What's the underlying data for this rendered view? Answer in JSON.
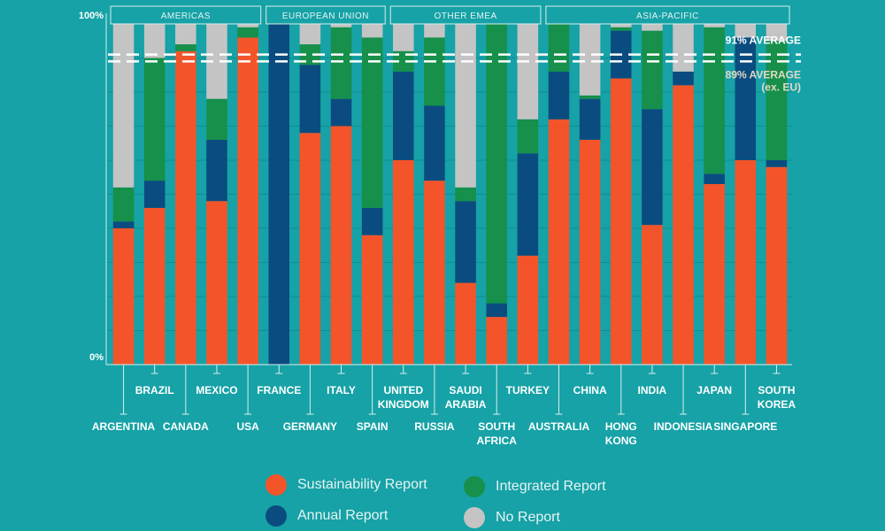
{
  "chart_data": {
    "type": "stacked-bar",
    "title": "",
    "ylabel": "",
    "ylim": [
      0,
      100
    ],
    "y_tick_labels": {
      "top": "100%",
      "bottom": "0%"
    },
    "groups": [
      {
        "label": "AMERICAS",
        "countries": [
          "ARGENTINA",
          "BRAZIL",
          "CANADA",
          "MEXICO",
          "USA"
        ]
      },
      {
        "label": "EUROPEAN UNION",
        "countries": [
          "FRANCE",
          "GERMANY",
          "ITALY",
          "SPAIN"
        ]
      },
      {
        "label": "OTHER EMEA",
        "countries": [
          "UNITED KINGDOM",
          "RUSSIA",
          "SAUDI ARABIA",
          "SOUTH AFRICA",
          "TURKEY"
        ]
      },
      {
        "label": "ASIA-PACIFIC",
        "countries": [
          "AUSTRALIA",
          "CHINA",
          "HONG KONG",
          "INDIA",
          "INDONESIA",
          "JAPAN",
          "SINGAPORE",
          "SOUTH KOREA"
        ]
      }
    ],
    "categories": [
      "ARGENTINA",
      "BRAZIL",
      "CANADA",
      "MEXICO",
      "USA",
      "FRANCE",
      "GERMANY",
      "ITALY",
      "SPAIN",
      "UNITED KINGDOM",
      "RUSSIA",
      "SAUDI ARABIA",
      "SOUTH AFRICA",
      "TURKEY",
      "AUSTRALIA",
      "CHINA",
      "HONG KONG",
      "INDIA",
      "INDONESIA",
      "JAPAN",
      "SINGAPORE",
      "SOUTH KOREA"
    ],
    "category_labels": [
      [
        "ARGENTINA"
      ],
      [
        "BRAZIL"
      ],
      [
        "CANADA"
      ],
      [
        "MEXICO"
      ],
      [
        "USA"
      ],
      [
        "FRANCE"
      ],
      [
        "GERMANY"
      ],
      [
        "ITALY"
      ],
      [
        "SPAIN"
      ],
      [
        "UNITED",
        "KINGDOM"
      ],
      [
        "RUSSIA"
      ],
      [
        "SAUDI",
        "ARABIA"
      ],
      [
        "SOUTH",
        "AFRICA"
      ],
      [
        "TURKEY"
      ],
      [
        "AUSTRALIA"
      ],
      [
        "CHINA"
      ],
      [
        "HONG",
        "KONG"
      ],
      [
        "INDIA"
      ],
      [
        "INDONESIA"
      ],
      [
        "JAPAN"
      ],
      [
        "SINGAPORE"
      ],
      [
        "SOUTH",
        "KOREA"
      ]
    ],
    "series": [
      {
        "name": "Sustainability Report",
        "color": "#f4542a",
        "values": [
          40,
          46,
          92,
          48,
          96,
          0,
          68,
          70,
          38,
          60,
          54,
          24,
          14,
          32,
          72,
          66,
          84,
          41,
          82,
          53,
          60,
          58
        ]
      },
      {
        "name": "Annual Report",
        "color": "#0b4c80",
        "values": [
          2,
          8,
          0,
          18,
          0,
          100,
          20,
          8,
          8,
          26,
          22,
          24,
          4,
          30,
          14,
          12,
          14,
          34,
          4,
          3,
          36,
          2
        ]
      },
      {
        "name": "Integrated Report",
        "color": "#16904a",
        "values": [
          10,
          36,
          2,
          12,
          3,
          0,
          6,
          21,
          50,
          6,
          20,
          4,
          82,
          10,
          14,
          1,
          1,
          23,
          0,
          43,
          0,
          35
        ]
      },
      {
        "name": "No Report",
        "color": "#c4c4c4",
        "values": [
          48,
          10,
          6,
          22,
          1,
          0,
          6,
          1,
          4,
          8,
          4,
          48,
          0,
          28,
          0,
          21,
          1,
          2,
          14,
          1,
          4,
          5
        ]
      }
    ],
    "reference_lines": [
      {
        "value": 91,
        "label": "91% AVERAGE",
        "sublabel": ""
      },
      {
        "value": 89,
        "label": "89% AVERAGE",
        "sublabel": "(ex. EU)"
      }
    ],
    "colors": {
      "background": "#16a2a6",
      "axis": "#d9eeee",
      "grid": "#0f8f93",
      "group_box": "#d9eeee",
      "text": "#ffffff",
      "ref_label_1": "#ffffff",
      "ref_label_2": "#e2d8c4"
    },
    "legend": {
      "placement": "bottom-center"
    }
  }
}
